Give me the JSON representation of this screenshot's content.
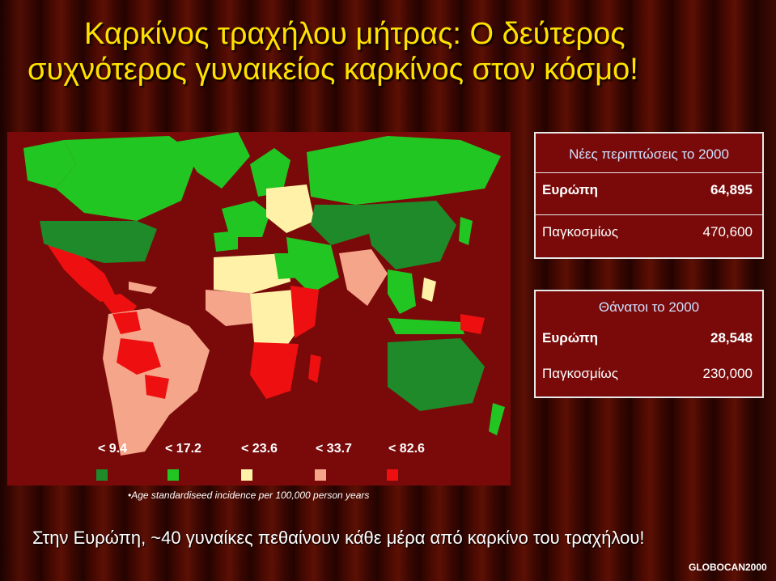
{
  "title": {
    "line1": "Καρκίνος τραχήλου μήτρας: Ο δεύτερος",
    "line2": "συχνότερος γυναικείος καρκίνος στον κόσμο!"
  },
  "new_cases": {
    "header": "Νέες περιπτώσεις το 2000",
    "europe_label": "Ευρώπη",
    "europe_value": "64,895",
    "world_label": "Παγκοσμίως",
    "world_value": "470,600"
  },
  "deaths": {
    "header": "Θάνατοι το 2000",
    "europe_label": "Ευρώπη",
    "europe_value": "28,548",
    "world_label": "Παγκοσμίως",
    "world_value": "230,000"
  },
  "legend": [
    {
      "label": "< 9.4",
      "color": "#1e8a2a"
    },
    {
      "label": "< 17.2",
      "color": "#22c622"
    },
    {
      "label": "< 23.6",
      "color": "#fff2a8"
    },
    {
      "label": "< 33.7",
      "color": "#f4a58a"
    },
    {
      "label": "< 82.6",
      "color": "#ee1010"
    }
  ],
  "caption": "•Age standardiseed incidence per 100,000 person years",
  "bottom_text": "Στην Ευρώπη, ~40 γυναίκες πεθαίνουν κάθε μέρα από καρκίνο του τραχήλου!",
  "source": "GLOBOCAN2000",
  "colors": {
    "title": "#ffe000",
    "map_background": "#7a0a0a",
    "lowest": "#1e8a2a",
    "low": "#22c622",
    "medium": "#fff2a8",
    "high": "#f4a58a",
    "highest": "#ee1010"
  }
}
